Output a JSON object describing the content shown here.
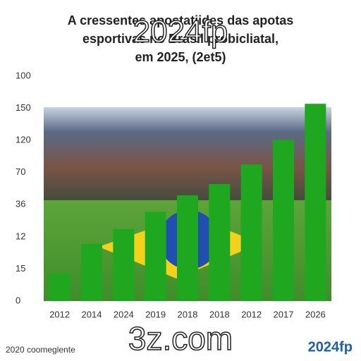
{
  "chart_data": {
    "type": "bar",
    "title": [
      "A cressentes apostatiides das apotas",
      "esportivas no Brasil probicliatal,",
      "em 2025, (2et5)"
    ],
    "categories": [
      "2012",
      "2014",
      "2024",
      "2019",
      "2018",
      "2018",
      "2012",
      "2017",
      "2026"
    ],
    "values": [
      0.85,
      1.78,
      2.24,
      2.78,
      3.29,
      3.64,
      4.25,
      5.02,
      6.14
    ],
    "color": "#1fa81f",
    "ylim": [
      0,
      7
    ],
    "yticks": [
      {
        "value": 0,
        "label": "0"
      },
      {
        "value": 1,
        "label": "15"
      },
      {
        "value": 2,
        "label": "12"
      },
      {
        "value": 3,
        "label": "36"
      },
      {
        "value": 4,
        "label": "70"
      },
      {
        "value": 5,
        "label": "120"
      },
      {
        "value": 6,
        "label": "150"
      },
      {
        "value": 7,
        "label": "100"
      }
    ],
    "watermarks": [
      "2024fp",
      "3z.com"
    ],
    "footer_left": "2020 coomeglente",
    "footer_right": "2024fp"
  }
}
